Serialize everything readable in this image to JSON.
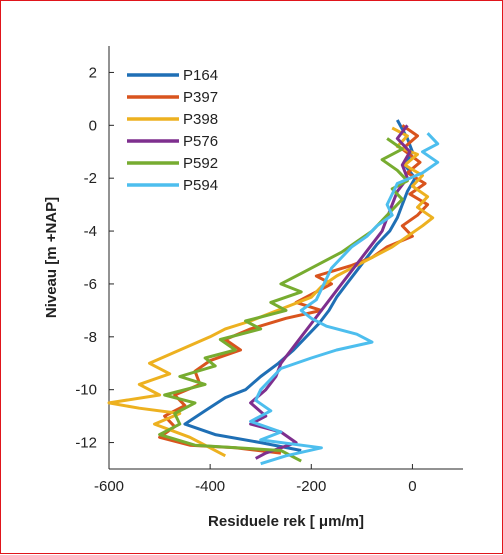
{
  "chart_data": {
    "type": "line",
    "title": "",
    "xlabel": "Residuele rek [ μm/m]",
    "ylabel": "Niveau [m +NAP]",
    "xlim": [
      -600,
      100
    ],
    "ylim": [
      -13,
      3
    ],
    "xticks": [
      -600,
      -400,
      -200,
      0
    ],
    "yticks": [
      2,
      0,
      -2,
      -4,
      -6,
      -8,
      -10,
      -12
    ],
    "legend_position": "top-left",
    "grid": false,
    "series": [
      {
        "name": "P164",
        "color": "#1f6fb5",
        "points": [
          [
            -30,
            0.2
          ],
          [
            -10,
            -0.5
          ],
          [
            0,
            -1.0
          ],
          [
            -15,
            -1.5
          ],
          [
            5,
            -2.0
          ],
          [
            -10,
            -2.5
          ],
          [
            -20,
            -3.0
          ],
          [
            -30,
            -3.5
          ],
          [
            -45,
            -4.0
          ],
          [
            -70,
            -4.5
          ],
          [
            -90,
            -5.0
          ],
          [
            -110,
            -5.5
          ],
          [
            -130,
            -6.0
          ],
          [
            -150,
            -6.5
          ],
          [
            -165,
            -7.0
          ],
          [
            -185,
            -7.5
          ],
          [
            -210,
            -8.0
          ],
          [
            -235,
            -8.5
          ],
          [
            -265,
            -9.0
          ],
          [
            -300,
            -9.5
          ],
          [
            -330,
            -10.0
          ],
          [
            -370,
            -10.3
          ],
          [
            -410,
            -10.8
          ],
          [
            -450,
            -11.3
          ],
          [
            -390,
            -11.7
          ],
          [
            -300,
            -12.0
          ],
          [
            -220,
            -12.3
          ]
        ]
      },
      {
        "name": "P397",
        "color": "#d9541e",
        "points": [
          [
            -20,
            0.0
          ],
          [
            10,
            -0.4
          ],
          [
            -20,
            -0.9
          ],
          [
            15,
            -1.4
          ],
          [
            -10,
            -1.8
          ],
          [
            25,
            -2.2
          ],
          [
            -5,
            -2.6
          ],
          [
            30,
            -3.0
          ],
          [
            10,
            -3.4
          ],
          [
            -20,
            -3.8
          ],
          [
            0,
            -4.2
          ],
          [
            -50,
            -4.6
          ],
          [
            -80,
            -5.0
          ],
          [
            -120,
            -5.3
          ],
          [
            -190,
            -5.7
          ],
          [
            -160,
            -6.0
          ],
          [
            -200,
            -6.4
          ],
          [
            -230,
            -6.7
          ],
          [
            -180,
            -7.0
          ],
          [
            -250,
            -7.3
          ],
          [
            -320,
            -7.7
          ],
          [
            -370,
            -8.1
          ],
          [
            -340,
            -8.5
          ],
          [
            -400,
            -8.9
          ],
          [
            -430,
            -9.3
          ],
          [
            -420,
            -9.8
          ],
          [
            -470,
            -10.2
          ],
          [
            -450,
            -10.6
          ],
          [
            -490,
            -11.0
          ],
          [
            -470,
            -11.4
          ],
          [
            -500,
            -11.8
          ],
          [
            -440,
            -12.1
          ],
          [
            -350,
            -12.2
          ],
          [
            -260,
            -12.4
          ]
        ]
      },
      {
        "name": "P398",
        "color": "#edb120",
        "points": [
          [
            -40,
            -0.1
          ],
          [
            -10,
            -0.4
          ],
          [
            -30,
            -0.8
          ],
          [
            10,
            -1.1
          ],
          [
            -15,
            -1.5
          ],
          [
            20,
            -1.9
          ],
          [
            0,
            -2.3
          ],
          [
            30,
            -2.7
          ],
          [
            10,
            -3.1
          ],
          [
            40,
            -3.5
          ],
          [
            20,
            -3.8
          ],
          [
            -10,
            -4.2
          ],
          [
            -40,
            -4.6
          ],
          [
            -80,
            -5.0
          ],
          [
            -120,
            -5.4
          ],
          [
            -150,
            -5.7
          ],
          [
            -180,
            -6.1
          ],
          [
            -200,
            -6.5
          ],
          [
            -240,
            -6.8
          ],
          [
            -280,
            -7.1
          ],
          [
            -320,
            -7.4
          ],
          [
            -370,
            -7.7
          ],
          [
            -400,
            -8.0
          ],
          [
            -460,
            -8.5
          ],
          [
            -520,
            -9.0
          ],
          [
            -480,
            -9.4
          ],
          [
            -540,
            -9.8
          ],
          [
            -500,
            -10.2
          ],
          [
            -600,
            -10.5
          ],
          [
            -540,
            -10.7
          ],
          [
            -460,
            -10.9
          ],
          [
            -510,
            -11.3
          ],
          [
            -440,
            -11.8
          ],
          [
            -400,
            -12.2
          ],
          [
            -370,
            -12.5
          ]
        ]
      },
      {
        "name": "P576",
        "color": "#7e2f8e",
        "points": [
          [
            -10,
            0.0
          ],
          [
            -30,
            -0.5
          ],
          [
            -5,
            -1.0
          ],
          [
            -20,
            -1.5
          ],
          [
            -10,
            -2.0
          ],
          [
            -30,
            -2.5
          ],
          [
            -40,
            -3.0
          ],
          [
            -50,
            -3.5
          ],
          [
            -60,
            -4.0
          ],
          [
            -80,
            -4.5
          ],
          [
            -100,
            -5.0
          ],
          [
            -120,
            -5.5
          ],
          [
            -140,
            -6.0
          ],
          [
            -160,
            -6.5
          ],
          [
            -180,
            -7.0
          ],
          [
            -200,
            -7.5
          ],
          [
            -220,
            -8.0
          ],
          [
            -240,
            -8.5
          ],
          [
            -260,
            -9.0
          ],
          [
            -270,
            -9.5
          ],
          [
            -290,
            -10.0
          ],
          [
            -320,
            -10.5
          ],
          [
            -290,
            -11.0
          ],
          [
            -320,
            -11.3
          ],
          [
            -260,
            -11.6
          ],
          [
            -230,
            -12.0
          ],
          [
            -290,
            -12.4
          ],
          [
            -310,
            -12.6
          ]
        ]
      },
      {
        "name": "P592",
        "color": "#77ac30",
        "points": [
          [
            -50,
            -0.5
          ],
          [
            -20,
            -0.9
          ],
          [
            -60,
            -1.3
          ],
          [
            -30,
            -1.7
          ],
          [
            -10,
            -2.1
          ],
          [
            -40,
            -2.4
          ],
          [
            -20,
            -2.8
          ],
          [
            -40,
            -3.2
          ],
          [
            -60,
            -3.6
          ],
          [
            -80,
            -4.0
          ],
          [
            -110,
            -4.4
          ],
          [
            -140,
            -4.8
          ],
          [
            -180,
            -5.2
          ],
          [
            -220,
            -5.6
          ],
          [
            -260,
            -6.0
          ],
          [
            -220,
            -6.3
          ],
          [
            -280,
            -6.7
          ],
          [
            -250,
            -7.0
          ],
          [
            -330,
            -7.4
          ],
          [
            -300,
            -7.7
          ],
          [
            -380,
            -8.1
          ],
          [
            -350,
            -8.5
          ],
          [
            -410,
            -8.8
          ],
          [
            -390,
            -9.1
          ],
          [
            -460,
            -9.5
          ],
          [
            -410,
            -9.8
          ],
          [
            -490,
            -10.2
          ],
          [
            -430,
            -10.5
          ],
          [
            -470,
            -10.9
          ],
          [
            -460,
            -11.3
          ],
          [
            -500,
            -11.7
          ],
          [
            -430,
            -12.1
          ],
          [
            -260,
            -12.3
          ],
          [
            -220,
            -12.7
          ]
        ]
      },
      {
        "name": "P594",
        "color": "#4dbeee",
        "points": [
          [
            30,
            -0.3
          ],
          [
            50,
            -0.7
          ],
          [
            20,
            -1.0
          ],
          [
            50,
            -1.4
          ],
          [
            20,
            -1.8
          ],
          [
            -30,
            -2.2
          ],
          [
            -40,
            -2.6
          ],
          [
            -50,
            -3.0
          ],
          [
            -40,
            -3.4
          ],
          [
            -70,
            -3.8
          ],
          [
            -90,
            -4.2
          ],
          [
            -120,
            -4.6
          ],
          [
            -140,
            -5.0
          ],
          [
            -160,
            -5.4
          ],
          [
            -170,
            -5.8
          ],
          [
            -180,
            -6.2
          ],
          [
            -190,
            -6.6
          ],
          [
            -220,
            -7.0
          ],
          [
            -200,
            -7.3
          ],
          [
            -170,
            -7.6
          ],
          [
            -110,
            -7.9
          ],
          [
            -80,
            -8.2
          ],
          [
            -150,
            -8.5
          ],
          [
            -200,
            -8.8
          ],
          [
            -260,
            -9.2
          ],
          [
            -280,
            -9.6
          ],
          [
            -300,
            -10.0
          ],
          [
            -310,
            -10.4
          ],
          [
            -280,
            -10.8
          ],
          [
            -320,
            -11.2
          ],
          [
            -260,
            -11.6
          ],
          [
            -300,
            -11.9
          ],
          [
            -180,
            -12.2
          ],
          [
            -250,
            -12.5
          ],
          [
            -300,
            -12.8
          ]
        ]
      }
    ]
  }
}
